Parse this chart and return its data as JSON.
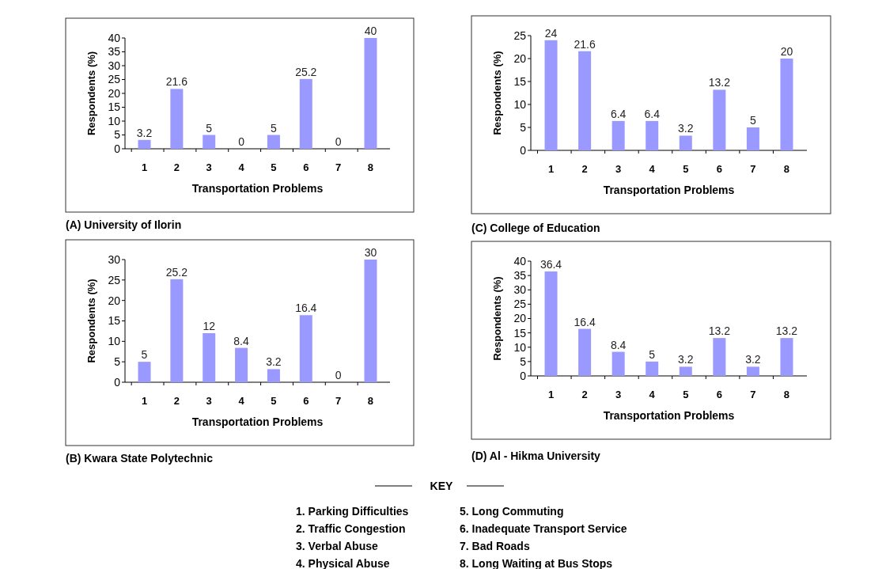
{
  "chart_data": [
    {
      "type": "bar",
      "title": "(A) University of Ilorin",
      "xlabel": "Transportation Problems",
      "ylabel": "Respondents (%)",
      "categories": [
        "1",
        "2",
        "3",
        "4",
        "5",
        "6",
        "7",
        "8"
      ],
      "values": [
        3.2,
        21.6,
        5,
        0,
        5,
        25.2,
        0,
        40
      ],
      "color": "#9999ff",
      "ylim": [
        0,
        40
      ],
      "yticks": [
        0,
        5,
        10,
        15,
        20,
        25,
        30,
        35,
        40
      ],
      "data_labels": true
    },
    {
      "type": "bar",
      "title": "(C) College of Education",
      "xlabel": "Transportation Problems",
      "ylabel": "Respondents (%)",
      "categories": [
        "1",
        "2",
        "3",
        "4",
        "5",
        "6",
        "7",
        "8"
      ],
      "values": [
        24,
        21.6,
        6.4,
        6.4,
        3.2,
        13.2,
        5,
        20
      ],
      "color": "#9999ff",
      "ylim": [
        0,
        25
      ],
      "yticks": [
        0,
        5,
        10,
        15,
        20,
        25
      ],
      "data_labels": true
    },
    {
      "type": "bar",
      "title": "(B) Kwara State Polytechnic",
      "xlabel": "Transportation Problems",
      "ylabel": "Respondents (%)",
      "categories": [
        "1",
        "2",
        "3",
        "4",
        "5",
        "6",
        "7",
        "8"
      ],
      "values": [
        5,
        25.2,
        12,
        8.4,
        3.2,
        16.4,
        0,
        30
      ],
      "color": "#9999ff",
      "ylim": [
        0,
        30
      ],
      "yticks": [
        0,
        5,
        10,
        15,
        20,
        25,
        30
      ],
      "data_labels": true
    },
    {
      "type": "bar",
      "title": "(D) Al - Hikma University",
      "xlabel": "Transportation Problems",
      "ylabel": "Respondents (%)",
      "categories": [
        "1",
        "2",
        "3",
        "4",
        "5",
        "6",
        "7",
        "8"
      ],
      "values": [
        36.4,
        16.4,
        8.4,
        5,
        3.2,
        13.2,
        3.2,
        13.2
      ],
      "color": "#9999ff",
      "ylim": [
        0,
        40
      ],
      "yticks": [
        0,
        5,
        10,
        15,
        20,
        25,
        30,
        35,
        40
      ],
      "data_labels": true
    },
    {
      "type": "other",
      "title": "KEY",
      "annotations": [
        "1. Parking Difficulties",
        "2. Traffic Congestion",
        "3. Verbal Abuse",
        "4. Physical Abuse",
        "5. Long Commuting",
        "6. Inadequate Transport Service",
        "7. Bad Roads",
        "8. Long Waiting at Bus Stops"
      ]
    }
  ]
}
